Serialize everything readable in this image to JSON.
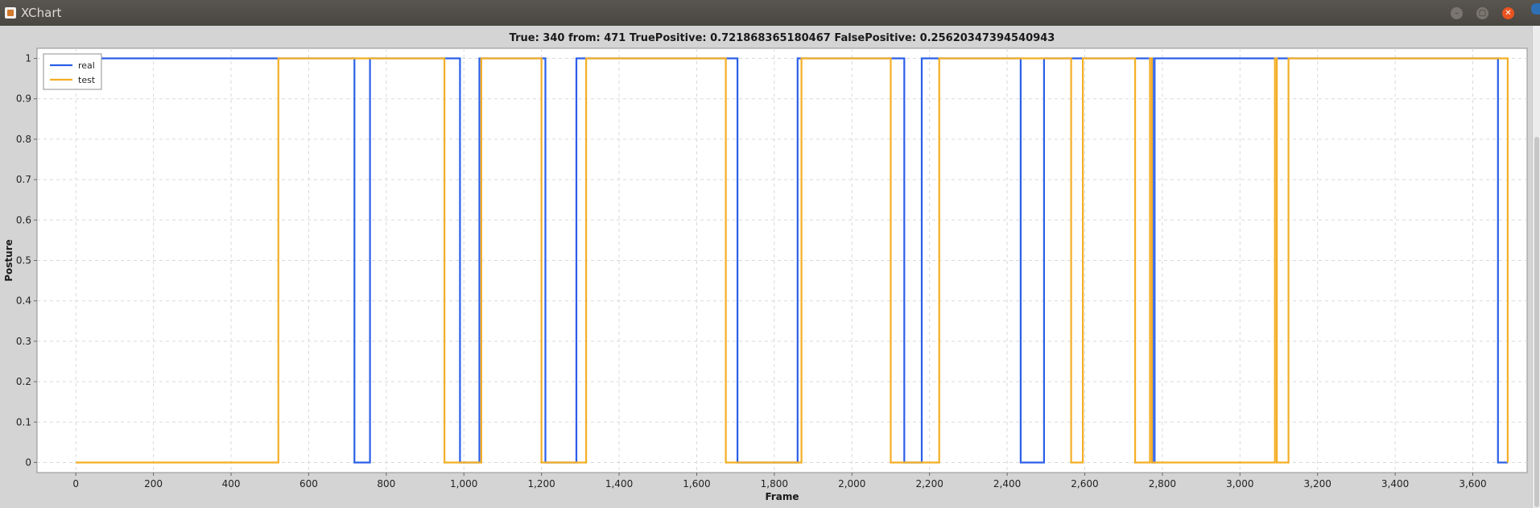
{
  "window": {
    "title": "XChart",
    "minimize_icon": "minimize-icon",
    "maximize_icon": "maximize-icon",
    "close_icon": "close-icon"
  },
  "chart_data": {
    "type": "line",
    "title": "True: 340 from: 471 TruePositive: 0.721868365180467 FalsePositive: 0.25620347394540943",
    "xlabel": "Frame",
    "ylabel": "Posture",
    "xlim": [
      -100,
      3740
    ],
    "ylim": [
      -0.025,
      1.025
    ],
    "x_ticks": [
      0,
      200,
      400,
      600,
      800,
      1000,
      1200,
      1400,
      1600,
      1800,
      2000,
      2200,
      2400,
      2600,
      2800,
      3000,
      3200,
      3400,
      3600
    ],
    "x_tick_labels": [
      "0",
      "200",
      "400",
      "600",
      "800",
      "1,000",
      "1,200",
      "1,400",
      "1,600",
      "1,800",
      "2,000",
      "2,200",
      "2,400",
      "2,600",
      "2,800",
      "3,000",
      "3,200",
      "3,400",
      "3,600"
    ],
    "y_ticks": [
      0,
      0.1,
      0.2,
      0.3,
      0.4,
      0.5,
      0.6,
      0.7,
      0.8,
      0.9,
      1
    ],
    "y_tick_labels": [
      "0",
      "0.1",
      "0.2",
      "0.3",
      "0.4",
      "0.5",
      "0.6",
      "0.7",
      "0.8",
      "0.9",
      "1"
    ],
    "grid": true,
    "legend_position": "top-left",
    "series": [
      {
        "name": "real",
        "color": "#2b5fe8",
        "x": [
          0,
          718,
          718,
          758,
          758,
          990,
          990,
          1040,
          1040,
          1210,
          1210,
          1290,
          1290,
          1705,
          1705,
          1860,
          1860,
          2135,
          2135,
          2180,
          2180,
          2435,
          2435,
          2495,
          2495,
          2775,
          2775,
          2780,
          2780,
          3665,
          3665,
          3690
        ],
        "y": [
          1,
          1,
          0,
          0,
          1,
          1,
          0,
          0,
          1,
          1,
          0,
          0,
          1,
          1,
          0,
          0,
          1,
          1,
          0,
          0,
          1,
          1,
          0,
          0,
          1,
          1,
          0,
          0,
          1,
          1,
          0,
          0
        ]
      },
      {
        "name": "test",
        "color": "#f4ae24",
        "x": [
          0,
          522,
          522,
          950,
          950,
          1045,
          1045,
          1200,
          1200,
          1315,
          1315,
          1675,
          1675,
          1870,
          1870,
          2100,
          2100,
          2225,
          2225,
          2565,
          2565,
          2595,
          2595,
          2730,
          2730,
          2768,
          2768,
          2773,
          2773,
          3090,
          3090,
          3095,
          3095,
          3125,
          3125,
          3690,
          3690
        ],
        "y": [
          0,
          0,
          1,
          1,
          0,
          0,
          1,
          1,
          0,
          0,
          1,
          1,
          0,
          0,
          1,
          1,
          0,
          0,
          1,
          1,
          0,
          0,
          1,
          1,
          0,
          0,
          1,
          1,
          0,
          0,
          1,
          1,
          0,
          0,
          1,
          1,
          0
        ]
      }
    ]
  }
}
